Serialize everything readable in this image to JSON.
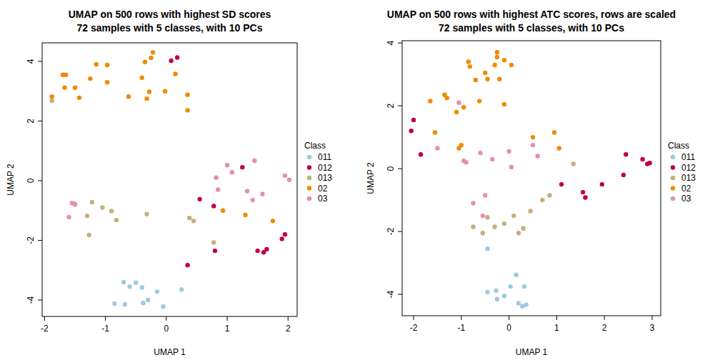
{
  "chart_data": [
    {
      "type": "scatter",
      "title": "UMAP on 500 rows with highest SD scores",
      "subtitle": "72 samples with 5 classes, with 10 PCs",
      "x_label": "UMAP 1",
      "y_label": "UMAP 2",
      "legend_title": "Class",
      "legend": "right",
      "xlim": [
        -2.04,
        2.15
      ],
      "ylim": [
        -4.55,
        4.62
      ],
      "xticks": [
        -2,
        -1,
        0,
        1,
        2
      ],
      "yticks": [
        -4,
        -2,
        0,
        2,
        4
      ],
      "series": [
        {
          "name": "011",
          "color": "#9ecae1",
          "x": [
            -0.85,
            -0.7,
            -0.68,
            -0.6,
            -0.5,
            -0.4,
            -0.38,
            -0.3,
            -0.15,
            -0.05,
            0.25
          ],
          "y": [
            -4.12,
            -3.4,
            -4.15,
            -3.55,
            -3.42,
            -3.58,
            -4.1,
            -4.0,
            -3.72,
            -4.22,
            -3.65
          ]
        },
        {
          "name": "012",
          "color": "#c2003e",
          "x": [
            0.08,
            0.18,
            0.55,
            0.35,
            0.78,
            0.8,
            1.25,
            1.5,
            1.6,
            1.65,
            1.9,
            1.95
          ],
          "y": [
            4.02,
            4.13,
            -0.62,
            -2.83,
            -0.85,
            -2.35,
            0.45,
            -2.35,
            -2.4,
            -2.3,
            -1.95,
            -1.8
          ]
        },
        {
          "name": "013",
          "color": "#c4b07e",
          "x": [
            -1.88,
            -1.5,
            -1.3,
            -1.27,
            -1.22,
            -1.05,
            -0.9,
            -0.82,
            -0.32,
            0.38,
            0.45,
            0.78
          ],
          "y": [
            2.68,
            -0.78,
            -1.18,
            -1.82,
            -0.72,
            -0.9,
            -1.02,
            -1.32,
            -1.12,
            -1.25,
            -1.35,
            -2.07
          ]
        },
        {
          "name": "02",
          "color": "#f08a00",
          "x": [
            -1.88,
            -1.7,
            -1.67,
            -1.65,
            -1.5,
            -1.43,
            -1.25,
            -1.15,
            -0.97,
            -0.97,
            -0.62,
            -0.4,
            -0.35,
            -0.32,
            -0.28,
            -0.25,
            -0.22,
            -0.02,
            0.15,
            0.35,
            0.35,
            0.93,
            1.3,
            1.75
          ],
          "y": [
            2.82,
            3.55,
            3.12,
            3.55,
            3.12,
            2.78,
            3.42,
            3.9,
            3.88,
            3.3,
            2.82,
            3.45,
            3.98,
            2.75,
            2.98,
            4.12,
            4.3,
            3.0,
            3.58,
            2.88,
            2.36,
            -1.0,
            -1.15,
            -1.35
          ]
        },
        {
          "name": "03",
          "color": "#e48fb2",
          "x": [
            -1.55,
            -1.5,
            -1.6,
            0.82,
            0.85,
            1.0,
            1.08,
            1.33,
            1.42,
            1.45,
            1.58,
            1.95,
            2.02
          ],
          "y": [
            -0.75,
            -0.8,
            -1.22,
            0.1,
            -0.3,
            0.52,
            0.28,
            -0.35,
            -0.65,
            0.67,
            -0.45,
            0.17,
            0.03
          ]
        }
      ]
    },
    {
      "type": "scatter",
      "title": "UMAP on 500 rows with highest ATC scores, rows are scaled",
      "subtitle": "72 samples with 5 classes, with 10 PCs",
      "x_label": "UMAP 1",
      "y_label": "UMAP 2",
      "legend_title": "Class",
      "legend": "right",
      "xlim": [
        -2.24,
        3.18
      ],
      "ylim": [
        -4.68,
        4.07
      ],
      "xticks": [
        -2,
        -1,
        0,
        1,
        2,
        3
      ],
      "yticks": [
        -4,
        -2,
        0,
        2,
        4
      ],
      "series": [
        {
          "name": "011",
          "color": "#9ecae1",
          "x": [
            -0.45,
            0.15,
            -0.45,
            -0.27,
            -0.25,
            -0.1,
            0.03,
            0.2,
            0.28,
            0.32,
            0.36
          ],
          "y": [
            -2.55,
            -3.38,
            -3.93,
            -3.88,
            -4.15,
            -4.05,
            -3.75,
            -4.28,
            -4.38,
            -3.75,
            -4.33
          ]
        },
        {
          "name": "012",
          "color": "#c2003e",
          "x": [
            -2.05,
            -2.0,
            -1.85,
            1.1,
            1.55,
            1.6,
            1.95,
            2.4,
            2.45,
            2.8,
            2.9,
            2.95
          ],
          "y": [
            1.2,
            1.55,
            0.45,
            -0.5,
            -0.75,
            -0.92,
            -0.5,
            -0.2,
            0.45,
            0.3,
            0.15,
            0.18
          ]
        },
        {
          "name": "013",
          "color": "#c4b07e",
          "x": [
            -0.75,
            -0.55,
            -0.3,
            -0.1,
            0.1,
            0.2,
            0.3,
            0.45,
            0.7,
            0.85,
            1.35,
            -0.45
          ],
          "y": [
            -1.85,
            -2.05,
            -1.85,
            -1.75,
            -1.5,
            -2.05,
            -1.9,
            -1.35,
            -1.0,
            -0.85,
            0.15,
            -1.55
          ]
        },
        {
          "name": "02",
          "color": "#f08a00",
          "x": [
            -0.85,
            -0.82,
            -0.7,
            -0.5,
            -0.45,
            -0.3,
            -0.25,
            -0.25,
            -0.2,
            -0.1,
            -0.1,
            0.05,
            -1.35,
            -1.3,
            -1.1,
            -0.95,
            -0.62,
            -1.65,
            -1.55,
            -1.05,
            -1.0,
            0.5,
            0.95,
            1.05
          ],
          "y": [
            3.4,
            3.25,
            2.82,
            3.05,
            2.85,
            3.3,
            3.55,
            3.7,
            2.85,
            2.05,
            3.45,
            3.3,
            2.35,
            2.25,
            1.8,
            1.95,
            2.15,
            2.15,
            1.15,
            0.65,
            0.75,
            1.0,
            1.15,
            0.65
          ]
        },
        {
          "name": "03",
          "color": "#e48fb2",
          "x": [
            -1.5,
            -1.05,
            -0.95,
            -0.9,
            -0.6,
            -0.5,
            -0.55,
            -0.75,
            -0.35,
            0.0,
            0.05,
            0.5,
            0.6
          ],
          "y": [
            0.65,
            2.1,
            0.25,
            0.2,
            0.5,
            -0.85,
            -1.5,
            -1.1,
            0.3,
            0.55,
            0.05,
            0.75,
            0.4
          ]
        }
      ]
    }
  ]
}
